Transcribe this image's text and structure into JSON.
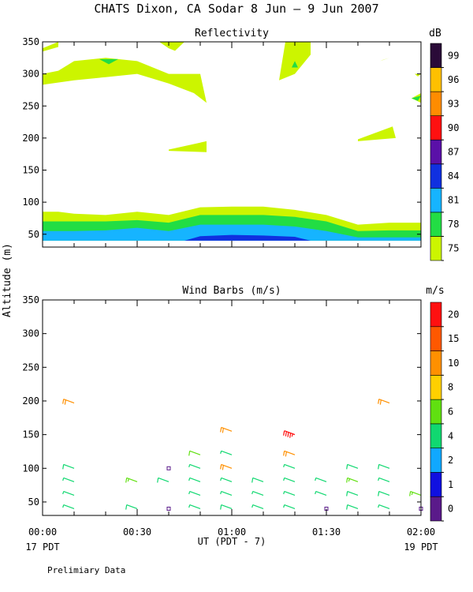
{
  "title": "CHATS Dixon, CA  Sodar   8 Jun –  9 Jun 2007",
  "footnote": "Prelimiary Data",
  "shared_axes": {
    "ylabel": "Altitude  (m)",
    "xlabel": "UT  (PDT - 7)",
    "x_ticks": [
      "00:00",
      "00:30",
      "01:00",
      "01:30",
      "02:00"
    ],
    "x_start_label": "17 PDT",
    "x_end_label": "19 PDT"
  },
  "chart_data": [
    {
      "type": "heatmap",
      "title": "Reflectivity",
      "xlim_minutes": [
        0,
        120
      ],
      "ylim": [
        30,
        350
      ],
      "y_ticks": [
        50,
        100,
        150,
        200,
        250,
        300,
        350
      ],
      "colorbar": {
        "unit": "dB",
        "labels": [
          "75",
          "78",
          "81",
          "84",
          "87",
          "90",
          "93",
          "96",
          "99"
        ],
        "colors": [
          "#ccf500",
          "#22dd44",
          "#16b4ff",
          "#1030e0",
          "#5a10a8",
          "#ff1010",
          "#ff8c00",
          "#ffc000",
          "#2a0a38"
        ]
      },
      "layers": [
        {
          "level": "75",
          "x": [
            0,
            5,
            10,
            20,
            30,
            40,
            50,
            60,
            70,
            80,
            90,
            100,
            110,
            120
          ],
          "top": [
            85,
            85,
            82,
            80,
            85,
            80,
            92,
            93,
            93,
            88,
            80,
            65,
            68,
            68
          ],
          "bottom": [
            40,
            40,
            40,
            40,
            40,
            40,
            40,
            40,
            40,
            40,
            40,
            40,
            40,
            40
          ]
        },
        {
          "level": "78",
          "x": [
            0,
            5,
            10,
            20,
            30,
            40,
            50,
            60,
            70,
            80,
            90,
            100,
            110,
            120
          ],
          "top": [
            70,
            70,
            70,
            70,
            72,
            68,
            80,
            80,
            80,
            77,
            70,
            55,
            56,
            56
          ],
          "bottom": [
            40,
            40,
            40,
            40,
            40,
            40,
            40,
            40,
            40,
            40,
            40,
            40,
            40,
            40
          ]
        },
        {
          "level": "81",
          "x": [
            0,
            5,
            10,
            20,
            30,
            40,
            50,
            60,
            70,
            80,
            90,
            100,
            110,
            120
          ],
          "top": [
            55,
            55,
            55,
            56,
            60,
            55,
            65,
            65,
            65,
            62,
            55,
            45,
            45,
            45
          ],
          "bottom": [
            40,
            40,
            40,
            40,
            40,
            40,
            40,
            40,
            40,
            40,
            40,
            40,
            40,
            40
          ]
        },
        {
          "level": "84",
          "x": [
            45,
            50,
            60,
            70,
            80,
            85
          ],
          "top": [
            40,
            47,
            49,
            48,
            46,
            40
          ],
          "bottom": [
            40,
            40,
            40,
            40,
            40,
            40
          ]
        }
      ],
      "patches": [
        {
          "level": "75",
          "x": [
            0,
            5,
            10,
            20,
            30,
            40,
            50,
            52,
            48,
            40,
            30,
            20,
            10,
            0
          ],
          "y": [
            300,
            305,
            320,
            325,
            320,
            300,
            300,
            255,
            270,
            285,
            300,
            295,
            290,
            283
          ]
        },
        {
          "level": "75",
          "x": [
            0,
            5,
            5,
            0
          ],
          "y": [
            340,
            350,
            342,
            335
          ]
        },
        {
          "level": "75",
          "x": [
            37,
            45,
            42,
            40
          ],
          "y": [
            350,
            350,
            336,
            340
          ]
        },
        {
          "level": "75",
          "x": [
            40,
            52,
            52,
            40
          ],
          "y": [
            182,
            195,
            178,
            180
          ]
        },
        {
          "level": "75",
          "x": [
            77,
            85,
            85,
            80,
            75
          ],
          "y": [
            350,
            350,
            330,
            300,
            290
          ]
        },
        {
          "level": "75",
          "x": [
            100,
            111,
            112,
            100
          ],
          "y": [
            198,
            218,
            200,
            195
          ]
        },
        {
          "level": "75",
          "x": [
            107,
            110,
            108
          ],
          "y": [
            320,
            325,
            322
          ]
        },
        {
          "level": "75",
          "x": [
            117,
            120,
            120
          ],
          "y": [
            262,
            270,
            255
          ]
        },
        {
          "level": "75",
          "x": [
            118,
            120,
            119
          ],
          "y": [
            300,
            300,
            296
          ]
        },
        {
          "level": "78",
          "x": [
            18,
            24,
            21
          ],
          "y": [
            323,
            323,
            315
          ]
        },
        {
          "level": "78",
          "x": [
            79,
            81,
            80
          ],
          "y": [
            310,
            310,
            320
          ]
        },
        {
          "level": "78",
          "x": [
            117,
            120,
            119
          ],
          "y": [
            262,
            266,
            258
          ]
        }
      ]
    },
    {
      "type": "scatter",
      "title": "Wind Barbs (m/s)",
      "xlim_minutes": [
        0,
        120
      ],
      "ylim": [
        30,
        350
      ],
      "y_ticks": [
        50,
        100,
        150,
        200,
        250,
        300,
        350
      ],
      "colorbar": {
        "unit": "m/s",
        "labels": [
          "0",
          "1",
          "2",
          "4",
          "6",
          "8",
          "10",
          "15",
          "20"
        ],
        "colors": [
          "#5a1a8a",
          "#1010e0",
          "#10a8ff",
          "#10d870",
          "#60e010",
          "#ffd000",
          "#ff9000",
          "#ff5800",
          "#ff1010"
        ]
      },
      "barbs": [
        {
          "t": 10,
          "alt": 40,
          "speed": 3
        },
        {
          "t": 10,
          "alt": 60,
          "speed": 3
        },
        {
          "t": 10,
          "alt": 80,
          "speed": 3
        },
        {
          "t": 10,
          "alt": 100,
          "speed": 4
        },
        {
          "t": 10,
          "alt": 197,
          "speed": 9
        },
        {
          "t": 30,
          "alt": 40,
          "speed": 4
        },
        {
          "t": 30,
          "alt": 80,
          "speed": 6
        },
        {
          "t": 40,
          "alt": 40,
          "speed": 0
        },
        {
          "t": 40,
          "alt": 80,
          "speed": 4
        },
        {
          "t": 40,
          "alt": 100,
          "speed": 0
        },
        {
          "t": 50,
          "alt": 40,
          "speed": 3
        },
        {
          "t": 50,
          "alt": 60,
          "speed": 3
        },
        {
          "t": 50,
          "alt": 80,
          "speed": 3
        },
        {
          "t": 50,
          "alt": 100,
          "speed": 3
        },
        {
          "t": 50,
          "alt": 120,
          "speed": 5
        },
        {
          "t": 60,
          "alt": 40,
          "speed": 4
        },
        {
          "t": 60,
          "alt": 60,
          "speed": 3
        },
        {
          "t": 60,
          "alt": 80,
          "speed": 3
        },
        {
          "t": 60,
          "alt": 100,
          "speed": 9
        },
        {
          "t": 60,
          "alt": 120,
          "speed": 3
        },
        {
          "t": 60,
          "alt": 155,
          "speed": 9
        },
        {
          "t": 70,
          "alt": 40,
          "speed": 3
        },
        {
          "t": 70,
          "alt": 60,
          "speed": 3
        },
        {
          "t": 70,
          "alt": 80,
          "speed": 4
        },
        {
          "t": 80,
          "alt": 40,
          "speed": 3
        },
        {
          "t": 80,
          "alt": 60,
          "speed": 3
        },
        {
          "t": 80,
          "alt": 80,
          "speed": 3
        },
        {
          "t": 80,
          "alt": 100,
          "speed": 3
        },
        {
          "t": 80,
          "alt": 120,
          "speed": 9
        },
        {
          "t": 80,
          "alt": 150,
          "speed": 18
        },
        {
          "t": 90,
          "alt": 40,
          "speed": 0
        },
        {
          "t": 90,
          "alt": 60,
          "speed": 3
        },
        {
          "t": 90,
          "alt": 80,
          "speed": 3
        },
        {
          "t": 100,
          "alt": 40,
          "speed": 4
        },
        {
          "t": 100,
          "alt": 60,
          "speed": 4
        },
        {
          "t": 100,
          "alt": 80,
          "speed": 6
        },
        {
          "t": 100,
          "alt": 100,
          "speed": 4
        },
        {
          "t": 110,
          "alt": 40,
          "speed": 3
        },
        {
          "t": 110,
          "alt": 60,
          "speed": 4
        },
        {
          "t": 110,
          "alt": 80,
          "speed": 3
        },
        {
          "t": 110,
          "alt": 100,
          "speed": 4
        },
        {
          "t": 110,
          "alt": 197,
          "speed": 9
        },
        {
          "t": 120,
          "alt": 40,
          "speed": 0
        },
        {
          "t": 120,
          "alt": 60,
          "speed": 6
        }
      ]
    }
  ]
}
